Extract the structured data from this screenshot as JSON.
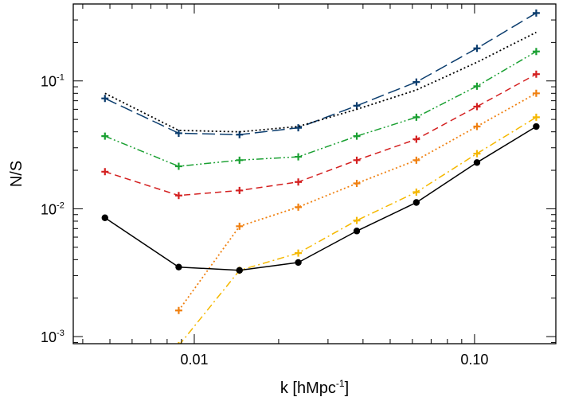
{
  "chart_data": {
    "type": "line",
    "xlabel": {
      "base": "k [hMpc",
      "sup": "-1",
      "tail": "]"
    },
    "ylabel": "N/S",
    "xscale": "log",
    "yscale": "log",
    "xlim": [
      0.0037,
      0.195
    ],
    "ylim": [
      0.00088,
      0.4
    ],
    "grid": false,
    "x_ticks": [
      {
        "value": 0.01,
        "label": "0.01"
      },
      {
        "value": 0.1,
        "label": "0.10"
      }
    ],
    "y_ticks": [
      {
        "value": 0.001,
        "base": "10",
        "sup": "-3"
      },
      {
        "value": 0.01,
        "base": "10",
        "sup": "-2"
      },
      {
        "value": 0.1,
        "base": "10",
        "sup": "-1"
      }
    ],
    "x": [
      0.0048,
      0.0088,
      0.0145,
      0.0235,
      0.038,
      0.062,
      0.102,
      0.166
    ],
    "series": [
      {
        "color": "#0b3d6e",
        "dash": "long-dash",
        "marker": "plus",
        "values": [
          0.073,
          0.039,
          0.038,
          0.043,
          0.064,
          0.098,
          0.18,
          0.34
        ]
      },
      {
        "color": "#000000",
        "dash": "dotted",
        "marker": "none",
        "values": [
          0.08,
          0.041,
          0.04,
          0.044,
          0.06,
          0.085,
          0.14,
          0.24
        ]
      },
      {
        "color": "#1aa032",
        "dash": "dash-dot-dot",
        "marker": "plus",
        "values": [
          0.037,
          0.0215,
          0.024,
          0.0255,
          0.037,
          0.052,
          0.091,
          0.17
        ]
      },
      {
        "color": "#d42020",
        "dash": "dashed",
        "marker": "plus",
        "values": [
          0.0195,
          0.0127,
          0.0139,
          0.0162,
          0.024,
          0.035,
          0.063,
          0.113
        ]
      },
      {
        "color": "#f08010",
        "dash": "dotted",
        "marker": "plus",
        "values": [
          null,
          0.0016,
          0.0073,
          0.0103,
          0.0158,
          0.024,
          0.044,
          0.08
        ]
      },
      {
        "color": "#f5b800",
        "dash": "dash-dot",
        "marker": "plus",
        "values": [
          null,
          0.00085,
          0.0033,
          0.0045,
          0.0081,
          0.0135,
          0.027,
          0.052
        ]
      },
      {
        "color": "#000000",
        "dash": "solid",
        "marker": "dot",
        "values": [
          0.0085,
          0.0035,
          0.0033,
          0.0038,
          0.0067,
          0.0112,
          0.023,
          0.044
        ]
      }
    ]
  }
}
